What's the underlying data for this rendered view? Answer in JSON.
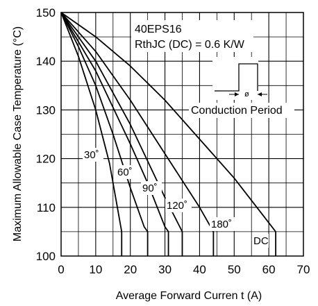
{
  "chart_data": {
    "type": "line",
    "title": "",
    "xlabel": "Average Forward Curren t (A)",
    "ylabel": "Maximum Allowable Case Temperature (°C)",
    "xlim": [
      0,
      70
    ],
    "ylim": [
      100,
      150
    ],
    "grid": true,
    "x_ticks": [
      "0",
      "10",
      "20",
      "30",
      "40",
      "50",
      "60",
      "70"
    ],
    "y_ticks": [
      "100",
      "110",
      "120",
      "130",
      "140",
      "150"
    ],
    "annotations": {
      "device": "40EPS16",
      "rth": "RthJC (DC) = 0.6 K/W",
      "waveform_symbol": "ø",
      "waveform_label": "Conduction Period"
    },
    "series": [
      {
        "name": "30°",
        "label": "30˚",
        "points": [
          [
            0,
            150
          ],
          [
            5,
            141
          ],
          [
            10,
            130
          ],
          [
            14,
            119
          ],
          [
            16,
            111
          ],
          [
            17.5,
            105
          ],
          [
            17.5,
            100
          ]
        ]
      },
      {
        "name": "60°",
        "label": "60˚",
        "points": [
          [
            0,
            150
          ],
          [
            5,
            143
          ],
          [
            10,
            135
          ],
          [
            15,
            125
          ],
          [
            20,
            114
          ],
          [
            24,
            106
          ],
          [
            25,
            105
          ],
          [
            25,
            100
          ]
        ]
      },
      {
        "name": "90°",
        "label": "90˚",
        "points": [
          [
            0,
            150
          ],
          [
            10,
            138
          ],
          [
            20,
            123
          ],
          [
            25,
            115
          ],
          [
            30,
            106
          ],
          [
            31,
            105
          ],
          [
            31,
            100
          ]
        ]
      },
      {
        "name": "120°",
        "label": "120˚",
        "points": [
          [
            0,
            150
          ],
          [
            10,
            140
          ],
          [
            20,
            127
          ],
          [
            30,
            112
          ],
          [
            35,
            105
          ],
          [
            35,
            100
          ]
        ]
      },
      {
        "name": "180°",
        "label": "180˚",
        "points": [
          [
            0,
            150
          ],
          [
            10,
            142
          ],
          [
            20,
            132
          ],
          [
            30,
            121
          ],
          [
            40,
            110
          ],
          [
            44,
            105
          ],
          [
            44,
            100
          ]
        ]
      },
      {
        "name": "DC",
        "label": "DC",
        "points": [
          [
            0,
            150
          ],
          [
            10,
            145
          ],
          [
            20,
            139
          ],
          [
            30,
            132
          ],
          [
            40,
            124
          ],
          [
            50,
            116
          ],
          [
            62,
            105
          ],
          [
            62,
            100
          ]
        ]
      }
    ]
  }
}
